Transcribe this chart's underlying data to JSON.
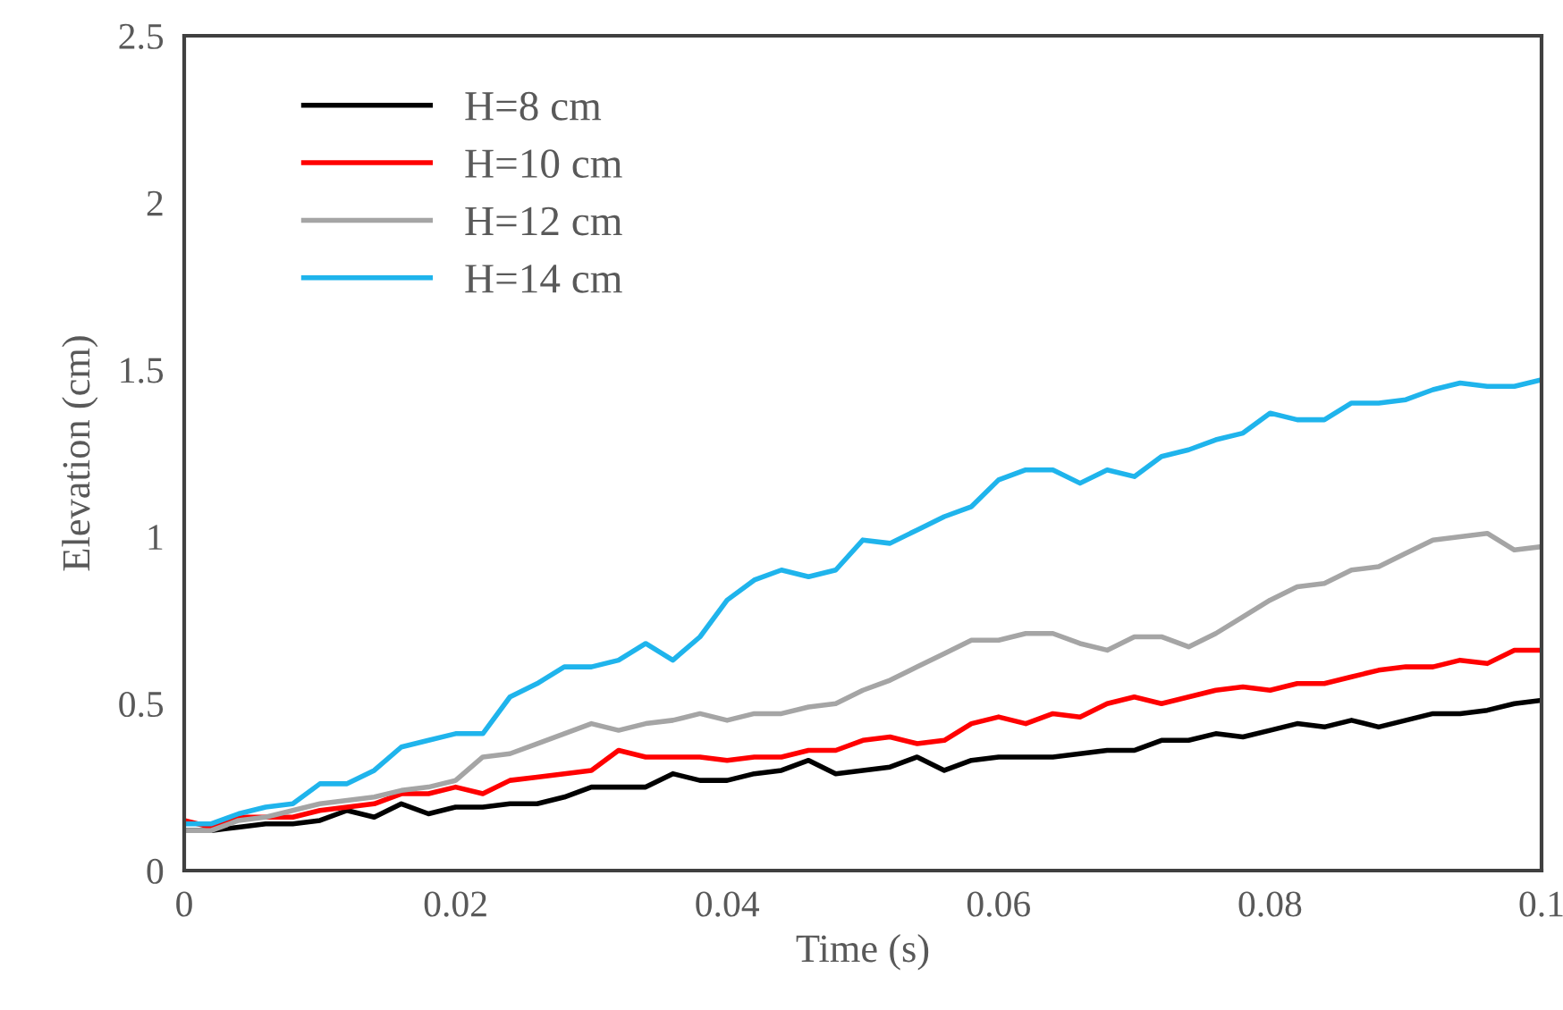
{
  "chart_data": {
    "type": "line",
    "xlabel": "Time (s)",
    "ylabel": "Elevation (cm)",
    "x": [
      0,
      0.002,
      0.004,
      0.006,
      0.008,
      0.01,
      0.012,
      0.014,
      0.016,
      0.018,
      0.02,
      0.022,
      0.024,
      0.026,
      0.028,
      0.03,
      0.032,
      0.034,
      0.036,
      0.038,
      0.04,
      0.042,
      0.044,
      0.046,
      0.048,
      0.05,
      0.052,
      0.054,
      0.056,
      0.058,
      0.06,
      0.062,
      0.064,
      0.066,
      0.068,
      0.07,
      0.072,
      0.074,
      0.076,
      0.078,
      0.08,
      0.082,
      0.084,
      0.086,
      0.088,
      0.09,
      0.092,
      0.094,
      0.096,
      0.098,
      0.1
    ],
    "series": [
      {
        "name": "H=8 cm",
        "color": "#000000",
        "values": [
          0.12,
          0.12,
          0.13,
          0.14,
          0.14,
          0.15,
          0.18,
          0.16,
          0.2,
          0.17,
          0.19,
          0.19,
          0.2,
          0.2,
          0.22,
          0.25,
          0.25,
          0.25,
          0.29,
          0.27,
          0.27,
          0.29,
          0.3,
          0.33,
          0.29,
          0.3,
          0.31,
          0.34,
          0.3,
          0.33,
          0.34,
          0.34,
          0.34,
          0.35,
          0.36,
          0.36,
          0.39,
          0.39,
          0.41,
          0.4,
          0.42,
          0.44,
          0.43,
          0.45,
          0.43,
          0.45,
          0.47,
          0.47,
          0.48,
          0.5,
          0.51
        ]
      },
      {
        "name": "H=10 cm",
        "color": "#ff0000",
        "values": [
          0.15,
          0.13,
          0.16,
          0.16,
          0.16,
          0.18,
          0.19,
          0.2,
          0.23,
          0.23,
          0.25,
          0.23,
          0.27,
          0.28,
          0.29,
          0.3,
          0.36,
          0.34,
          0.34,
          0.34,
          0.33,
          0.34,
          0.34,
          0.36,
          0.36,
          0.39,
          0.4,
          0.38,
          0.39,
          0.44,
          0.46,
          0.44,
          0.47,
          0.46,
          0.5,
          0.52,
          0.5,
          0.52,
          0.54,
          0.55,
          0.54,
          0.56,
          0.56,
          0.58,
          0.6,
          0.61,
          0.61,
          0.63,
          0.62,
          0.66,
          0.66
        ]
      },
      {
        "name": "H=12 cm",
        "color": "#a5a5a5",
        "values": [
          0.12,
          0.12,
          0.15,
          0.16,
          0.18,
          0.2,
          0.21,
          0.22,
          0.24,
          0.25,
          0.27,
          0.34,
          0.35,
          0.38,
          0.41,
          0.44,
          0.42,
          0.44,
          0.45,
          0.47,
          0.45,
          0.47,
          0.47,
          0.49,
          0.5,
          0.54,
          0.57,
          0.61,
          0.65,
          0.69,
          0.69,
          0.71,
          0.71,
          0.68,
          0.66,
          0.7,
          0.7,
          0.67,
          0.71,
          0.76,
          0.81,
          0.85,
          0.86,
          0.9,
          0.91,
          0.95,
          0.99,
          1.0,
          1.01,
          0.96,
          0.97
        ]
      },
      {
        "name": "H=14 cm",
        "color": "#1fb4ec",
        "values": [
          0.14,
          0.14,
          0.17,
          0.19,
          0.2,
          0.26,
          0.26,
          0.3,
          0.37,
          0.39,
          0.41,
          0.41,
          0.52,
          0.56,
          0.61,
          0.61,
          0.63,
          0.68,
          0.63,
          0.7,
          0.81,
          0.87,
          0.9,
          0.88,
          0.9,
          0.99,
          0.98,
          1.02,
          1.06,
          1.09,
          1.17,
          1.2,
          1.2,
          1.16,
          1.2,
          1.18,
          1.24,
          1.26,
          1.29,
          1.31,
          1.37,
          1.35,
          1.35,
          1.4,
          1.4,
          1.41,
          1.44,
          1.46,
          1.45,
          1.45,
          1.47
        ]
      }
    ],
    "xlim": [
      0,
      0.1
    ],
    "xticks": [
      0,
      0.02,
      0.04,
      0.06,
      0.08,
      0.1
    ],
    "ylim": [
      0,
      2.5
    ],
    "yticks": [
      0,
      0.5,
      1,
      1.5,
      2,
      2.5
    ],
    "grid": false,
    "legend": "top left",
    "marker": "none",
    "line_style": "solid"
  }
}
